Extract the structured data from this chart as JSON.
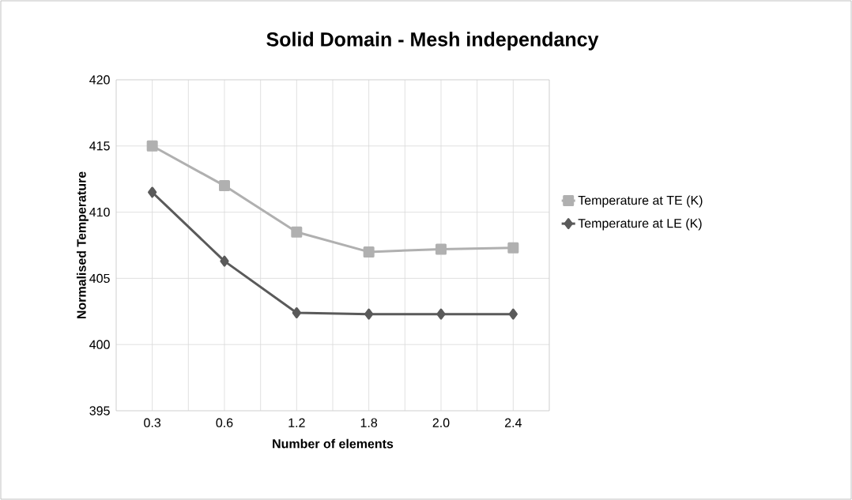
{
  "chart_data": {
    "type": "line",
    "title": "Solid Domain - Mesh independancy",
    "xlabel": "Number of elements",
    "ylabel": "Normalised Temperature",
    "categories": [
      "0.3",
      "0.6",
      "1.2",
      "1.8",
      "2.0",
      "2.4"
    ],
    "series": [
      {
        "name": "Temperature at TE (K)",
        "color": "#b0b0b0",
        "marker": "square",
        "values": [
          415.0,
          412.0,
          408.5,
          407.0,
          407.2,
          407.3
        ]
      },
      {
        "name": "Temperature at LE (K)",
        "color": "#5a5a5a",
        "marker": "diamond",
        "values": [
          411.5,
          406.3,
          402.4,
          402.3,
          402.3,
          402.3
        ]
      }
    ],
    "ylim": [
      395,
      420
    ],
    "yticks": [
      395,
      400,
      405,
      410,
      415,
      420
    ],
    "grid": true,
    "legend": "right",
    "line_style": "solid"
  }
}
